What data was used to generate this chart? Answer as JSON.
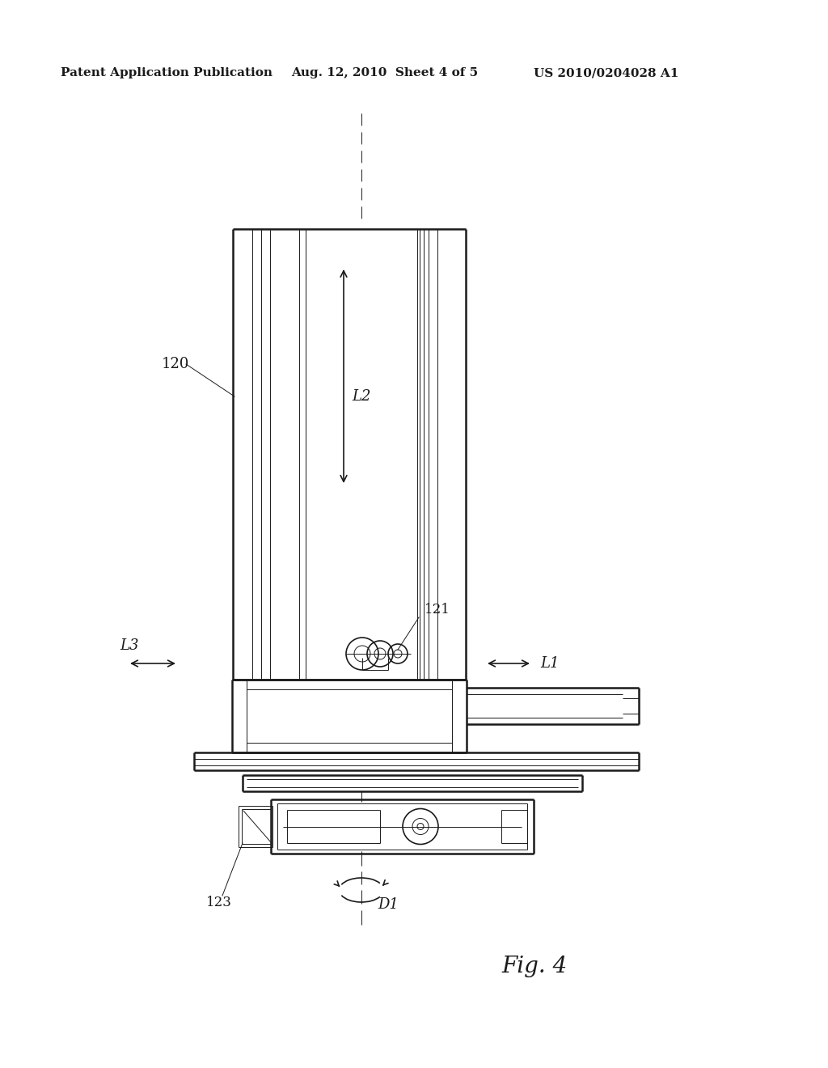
{
  "bg_color": "#ffffff",
  "header_text1": "Patent Application Publication",
  "header_text2": "Aug. 12, 2010  Sheet 4 of 5",
  "header_text3": "US 2010/0204028 A1",
  "fig_label": "Fig. 4",
  "label_120": "120",
  "label_121": "121",
  "label_123": "123",
  "label_L1": "L1",
  "label_L2": "L2",
  "label_L3": "L3",
  "label_D1": "D1",
  "line_color": "#1a1a1a",
  "lw_thick": 1.8,
  "lw_med": 1.2,
  "lw_thin": 0.7
}
